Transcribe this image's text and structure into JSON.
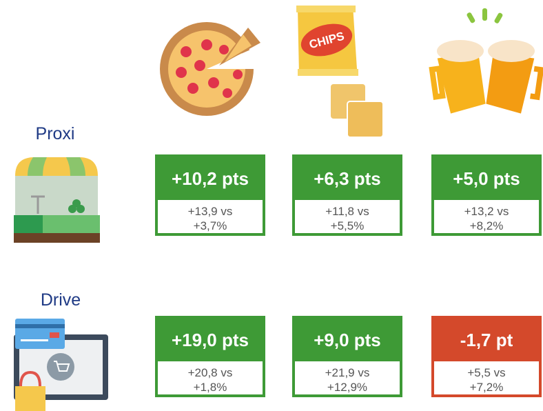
{
  "icon_text": "CHIPS",
  "rows": [
    {
      "label": "Proxi",
      "cells": [
        {
          "headline": "+10,2 pts",
          "line1": "+13,9 vs",
          "line2": "+3,7%",
          "color": "#3e9a36"
        },
        {
          "headline": "+6,3 pts",
          "line1": "+11,8 vs",
          "line2": "+5,5%",
          "color": "#3e9a36"
        },
        {
          "headline": "+5,0 pts",
          "line1": "+13,2 vs",
          "line2": "+8,2%",
          "color": "#3e9a36"
        }
      ]
    },
    {
      "label": "Drive",
      "cells": [
        {
          "headline": "+19,0 pts",
          "line1": "+20,8 vs",
          "line2": "+1,8%",
          "color": "#3e9a36"
        },
        {
          "headline": "+9,0 pts",
          "line1": "+21,9 vs",
          "line2": "+12,9%",
          "color": "#3e9a36"
        },
        {
          "headline": "-1,7 pt",
          "line1": "+5,5 vs",
          "line2": "+7,2%",
          "color": "#d4492b"
        }
      ]
    }
  ]
}
